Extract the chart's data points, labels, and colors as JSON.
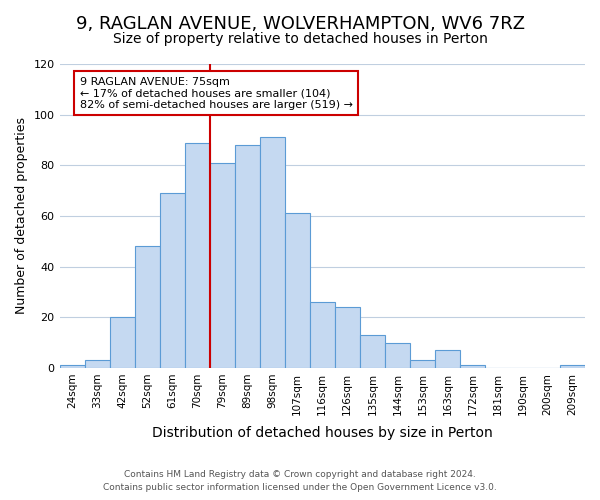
{
  "title": "9, RAGLAN AVENUE, WOLVERHAMPTON, WV6 7RZ",
  "subtitle": "Size of property relative to detached houses in Perton",
  "xlabel": "Distribution of detached houses by size in Perton",
  "ylabel": "Number of detached properties",
  "categories": [
    "24sqm",
    "33sqm",
    "42sqm",
    "52sqm",
    "61sqm",
    "70sqm",
    "79sqm",
    "89sqm",
    "98sqm",
    "107sqm",
    "116sqm",
    "126sqm",
    "135sqm",
    "144sqm",
    "153sqm",
    "163sqm",
    "172sqm",
    "181sqm",
    "190sqm",
    "200sqm",
    "209sqm"
  ],
  "values": [
    1,
    3,
    20,
    48,
    69,
    89,
    81,
    88,
    91,
    61,
    26,
    24,
    13,
    10,
    3,
    7,
    1,
    0,
    0,
    0,
    1
  ],
  "bar_color": "#c5d9f1",
  "bar_edge_color": "#5b9bd5",
  "grid_color": "#c0cfe0",
  "ylim": [
    0,
    120
  ],
  "yticks": [
    0,
    20,
    40,
    60,
    80,
    100,
    120
  ],
  "vline_x": 5.5,
  "vline_color": "#cc0000",
  "annotation_title": "9 RAGLAN AVENUE: 75sqm",
  "annotation_line1": "← 17% of detached houses are smaller (104)",
  "annotation_line2": "82% of semi-detached houses are larger (519) →",
  "annotation_box_color": "#ffffff",
  "annotation_box_edge": "#cc0000",
  "footer_line1": "Contains HM Land Registry data © Crown copyright and database right 2024.",
  "footer_line2": "Contains public sector information licensed under the Open Government Licence v3.0.",
  "bg_color": "#ffffff",
  "title_fontsize": 13,
  "subtitle_fontsize": 10,
  "xlabel_fontsize": 10,
  "ylabel_fontsize": 9
}
